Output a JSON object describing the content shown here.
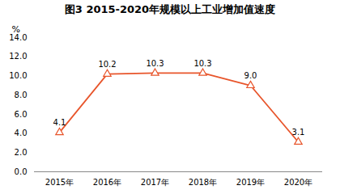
{
  "chart_data": {
    "type": "line",
    "title": "图3 2015-2020年规模以上工业增加值速度",
    "y_label": "%",
    "categories": [
      "2015年",
      "2016年",
      "2017年",
      "2018年",
      "2019年",
      "2020年"
    ],
    "values": [
      4.1,
      10.2,
      10.3,
      10.3,
      9.0,
      3.1
    ],
    "value_labels": [
      "4.1",
      "10.2",
      "10.3",
      "10.3",
      "9.0",
      "3.1"
    ],
    "color": "#e8552b",
    "marker": "triangle",
    "line_style": "solid",
    "ylim": [
      0,
      14
    ],
    "yticks": [
      {
        "value": 0,
        "label": "0.0"
      },
      {
        "value": 2,
        "label": "2.0"
      },
      {
        "value": 4,
        "label": "4.0"
      },
      {
        "value": 6,
        "label": "6.0"
      },
      {
        "value": 8,
        "label": "8.0"
      },
      {
        "value": 10,
        "label": "10.0"
      },
      {
        "value": 12,
        "label": "12.0"
      },
      {
        "value": 14,
        "label": "14.0"
      }
    ],
    "grid": false,
    "data_labels": true
  }
}
